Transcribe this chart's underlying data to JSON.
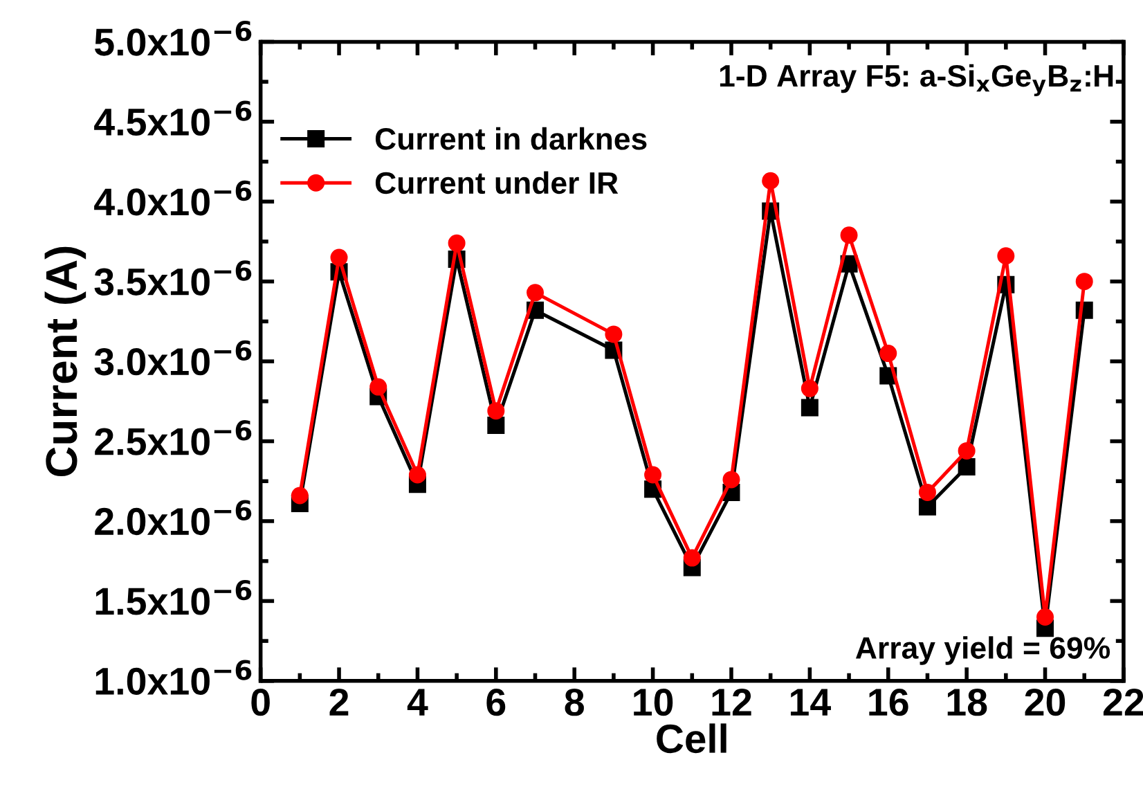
{
  "chart_data": {
    "type": "line",
    "title": "1-D Array F5: a-Si$_{x}$Ge$_{y}$B$_{z}$:H",
    "xlabel": "Cell",
    "ylabel": "Current (A)",
    "x": [
      1,
      2,
      3,
      4,
      5,
      6,
      7,
      9,
      10,
      11,
      12,
      13,
      14,
      15,
      16,
      17,
      18,
      19,
      20,
      21
    ],
    "series": [
      {
        "name": "Current in darknes",
        "color": "#000000",
        "marker": "square",
        "values": [
          2.11e-06,
          3.56e-06,
          2.78e-06,
          2.23e-06,
          3.64e-06,
          2.6e-06,
          3.32e-06,
          3.07e-06,
          2.2e-06,
          1.71e-06,
          2.18e-06,
          3.94e-06,
          2.71e-06,
          3.61e-06,
          2.91e-06,
          2.09e-06,
          2.34e-06,
          3.48e-06,
          1.33e-06,
          3.32e-06
        ]
      },
      {
        "name": "Current under IR",
        "color": "#ff0000",
        "marker": "circle",
        "values": [
          2.16e-06,
          3.65e-06,
          2.84e-06,
          2.29e-06,
          3.74e-06,
          2.69e-06,
          3.43e-06,
          3.17e-06,
          2.29e-06,
          1.77e-06,
          2.26e-06,
          4.13e-06,
          2.83e-06,
          3.79e-06,
          3.05e-06,
          2.18e-06,
          2.44e-06,
          3.66e-06,
          1.4e-06,
          3.5e-06
        ]
      }
    ],
    "xlim": [
      0,
      22
    ],
    "xticks": [
      0,
      2,
      4,
      6,
      8,
      10,
      12,
      14,
      16,
      18,
      20,
      22
    ],
    "ylim": [
      1e-06,
      5e-06
    ],
    "yticks": [
      {
        "value": 1e-06,
        "label": "1.0x10$^{−6}$"
      },
      {
        "value": 1.5e-06,
        "label": "1.5x10$^{−6}$"
      },
      {
        "value": 2e-06,
        "label": "2.0x10$^{−6}$"
      },
      {
        "value": 2.5e-06,
        "label": "2.5x10$^{−6}$"
      },
      {
        "value": 3e-06,
        "label": "3.0x10$^{−6}$"
      },
      {
        "value": 3.5e-06,
        "label": "3.5x10$^{−6}$"
      },
      {
        "value": 4e-06,
        "label": "4.0x10$^{−6}$"
      },
      {
        "value": 4.5e-06,
        "label": "4.5x10$^{−6}$"
      },
      {
        "value": 5e-06,
        "label": "5.0x10$^{−6}$"
      }
    ],
    "annotations": [
      "Array yield = 69%"
    ],
    "legend": "top left",
    "grid": false,
    "line_style": "solid"
  }
}
